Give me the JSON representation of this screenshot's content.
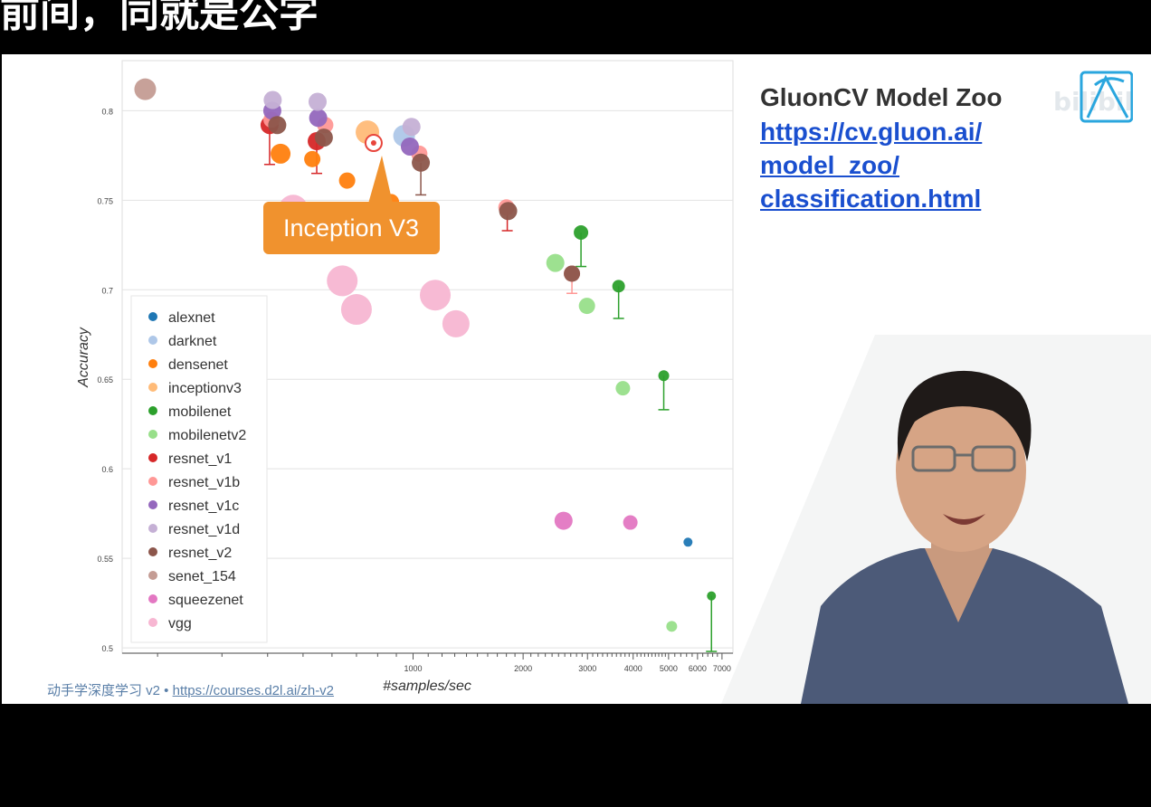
{
  "video_header": {
    "title": "前间，同就是公字"
  },
  "slide": {
    "heading": "GluonCV Model Zoo",
    "link_lines": [
      "https://cv.gluon.ai/",
      "model_zoo/",
      "classification.html"
    ],
    "footer_course": "动手学深度学习 v2 • ",
    "footer_url": "https://courses.d2l.ai/zh-v2",
    "watermark": "bilibili",
    "callout": "Inception V3"
  },
  "colors": {
    "alexnet": "#1f77b4",
    "darknet": "#aec7e8",
    "densenet": "#ff7f0e",
    "inceptionv3": "#ffbb78",
    "mobilenet": "#2ca02c",
    "mobilenetv2": "#98df8a",
    "resnet_v1": "#d62728",
    "resnet_v1b": "#ff9896",
    "resnet_v1c": "#9467bd",
    "resnet_v1d": "#c5b0d5",
    "resnet_v2": "#8c564b",
    "senet_154": "#c49c94",
    "squeezenet": "#e377c2",
    "vgg": "#f7b6d2",
    "callout": "#f0922e",
    "link": "#1a4fcf"
  },
  "chart_data": {
    "type": "scatter",
    "xlabel": "#samples/sec",
    "ylabel": "Accuracy",
    "x_scale": "log",
    "xlim": [
      160,
      7500
    ],
    "ylim": [
      0.497,
      0.828
    ],
    "x_ticks": [
      1000,
      2000,
      3000,
      4000,
      5000,
      6000,
      7000
    ],
    "x_tick_labels": [
      "1000",
      "2000",
      "3000",
      "4000",
      "5000",
      "6000",
      "7000"
    ],
    "y_ticks": [
      0.5,
      0.55,
      0.6,
      0.65,
      0.7,
      0.75,
      0.8
    ],
    "y_tick_labels": [
      "0.5",
      "0.55",
      "0.6",
      "0.65",
      "0.7",
      "0.75",
      "0.8"
    ],
    "grid": true,
    "legend_position": "bottom-left",
    "highlight": {
      "series": "inceptionv3",
      "x": 780,
      "y": 0.782,
      "label": "Inception V3"
    },
    "series": [
      {
        "name": "alexnet",
        "points": [
          [
            5650,
            0.559,
            5
          ]
        ]
      },
      {
        "name": "darknet",
        "points": [
          [
            945,
            0.786,
            12
          ]
        ]
      },
      {
        "name": "densenet",
        "points": [
          [
            434,
            0.776,
            11
          ],
          [
            530,
            0.773,
            9
          ],
          [
            660,
            0.761,
            9
          ],
          [
            870,
            0.749,
            9
          ]
        ]
      },
      {
        "name": "inceptionv3",
        "points": [
          [
            750,
            0.788,
            13
          ]
        ]
      },
      {
        "name": "mobilenet",
        "points": [
          [
            2880,
            0.732,
            8
          ],
          [
            3650,
            0.702,
            7
          ],
          [
            4850,
            0.652,
            6
          ],
          [
            6550,
            0.529,
            5
          ]
        ]
      },
      {
        "name": "mobilenetv2",
        "points": [
          [
            2450,
            0.715,
            10
          ],
          [
            2990,
            0.691,
            9
          ],
          [
            3750,
            0.645,
            8
          ],
          [
            5100,
            0.512,
            6
          ]
        ]
      },
      {
        "name": "resnet_v1",
        "points": [
          [
            405,
            0.792,
            10
          ],
          [
            545,
            0.783,
            10
          ]
        ]
      },
      {
        "name": "resnet_v1b",
        "points": [
          [
            410,
            0.795,
            9
          ],
          [
            575,
            0.792,
            9
          ],
          [
            1040,
            0.776,
            9
          ],
          [
            1800,
            0.746,
            9
          ],
          [
            2720,
            0.709,
            9
          ]
        ]
      },
      {
        "name": "resnet_v1c",
        "points": [
          [
            412,
            0.8,
            10
          ],
          [
            550,
            0.796,
            10
          ],
          [
            980,
            0.78,
            10
          ]
        ]
      },
      {
        "name": "resnet_v1d",
        "points": [
          [
            413,
            0.806,
            10
          ],
          [
            548,
            0.805,
            10
          ],
          [
            990,
            0.791,
            10
          ]
        ]
      },
      {
        "name": "resnet_v2",
        "points": [
          [
            425,
            0.792,
            10
          ],
          [
            570,
            0.785,
            10
          ],
          [
            1050,
            0.771,
            10
          ],
          [
            1820,
            0.744,
            10
          ],
          [
            2720,
            0.709,
            9
          ]
        ]
      },
      {
        "name": "senet_154",
        "points": [
          [
            185,
            0.812,
            12
          ]
        ]
      },
      {
        "name": "squeezenet",
        "points": [
          [
            2580,
            0.571,
            10
          ],
          [
            3930,
            0.57,
            8
          ]
        ]
      },
      {
        "name": "vgg",
        "points": [
          [
            470,
            0.745,
            16
          ],
          [
            520,
            0.742,
            14
          ],
          [
            640,
            0.705,
            17
          ],
          [
            700,
            0.689,
            17
          ],
          [
            1150,
            0.697,
            17
          ],
          [
            1310,
            0.681,
            15
          ]
        ]
      }
    ]
  }
}
